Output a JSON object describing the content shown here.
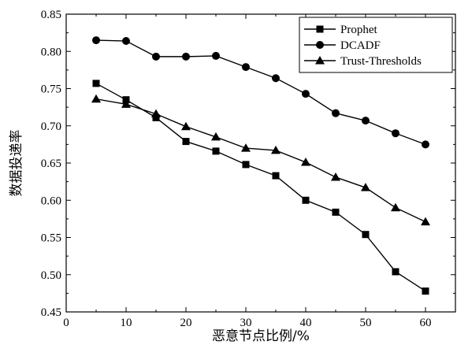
{
  "chart_data": {
    "type": "line",
    "xlabel": "恶意节点比例/%",
    "ylabel": "数据投递率",
    "xlim": [
      0,
      65
    ],
    "ylim": [
      0.45,
      0.85
    ],
    "xticks": [
      0,
      10,
      20,
      30,
      40,
      50,
      60
    ],
    "yticks": [
      0.45,
      0.5,
      0.55,
      0.6,
      0.65,
      0.7,
      0.75,
      0.8,
      0.85
    ],
    "legend_position": "top-right",
    "grid": false,
    "x": [
      5,
      10,
      15,
      20,
      25,
      30,
      35,
      40,
      45,
      50,
      55,
      60
    ],
    "series": [
      {
        "name": "Prophet",
        "marker": "square",
        "values": [
          0.757,
          0.735,
          0.711,
          0.679,
          0.666,
          0.648,
          0.633,
          0.6,
          0.584,
          0.554,
          0.504,
          0.478
        ]
      },
      {
        "name": "DCADF",
        "marker": "circle",
        "values": [
          0.815,
          0.814,
          0.793,
          0.793,
          0.794,
          0.779,
          0.764,
          0.743,
          0.717,
          0.707,
          0.69,
          0.675
        ]
      },
      {
        "name": "Trust-Thresholds",
        "marker": "triangle",
        "values": [
          0.736,
          0.729,
          0.716,
          0.699,
          0.685,
          0.67,
          0.667,
          0.651,
          0.631,
          0.617,
          0.59,
          0.571
        ]
      }
    ]
  }
}
